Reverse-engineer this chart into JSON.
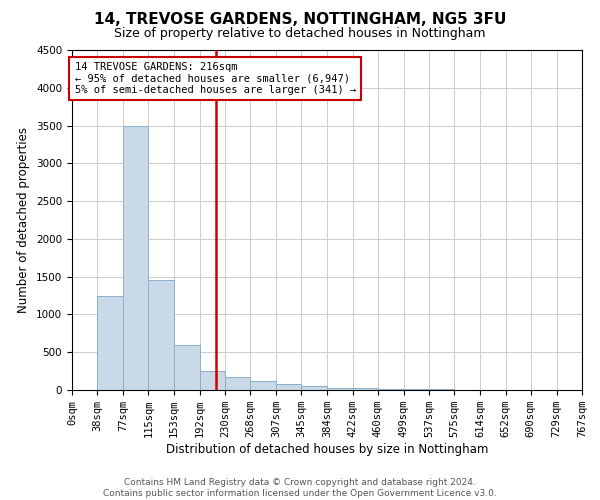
{
  "title": "14, TREVOSE GARDENS, NOTTINGHAM, NG5 3FU",
  "subtitle": "Size of property relative to detached houses in Nottingham",
  "xlabel": "Distribution of detached houses by size in Nottingham",
  "ylabel": "Number of detached properties",
  "bar_edges": [
    0,
    38,
    77,
    115,
    153,
    192,
    230,
    268,
    307,
    345,
    384,
    422,
    460,
    499,
    537,
    575,
    614,
    652,
    690,
    729,
    767
  ],
  "bar_heights": [
    0,
    1250,
    3500,
    1450,
    600,
    250,
    175,
    120,
    75,
    50,
    30,
    20,
    15,
    10,
    8,
    5,
    4,
    3,
    2,
    1
  ],
  "bar_color": "#c9d9e8",
  "bar_edgecolor": "#8ab0cc",
  "property_size": 216,
  "vline_color": "#cc0000",
  "annotation_line1": "14 TREVOSE GARDENS: 216sqm",
  "annotation_line2": "← 95% of detached houses are smaller (6,947)",
  "annotation_line3": "5% of semi-detached houses are larger (341) →",
  "annotation_box_color": "#cc0000",
  "ylim": [
    0,
    4500
  ],
  "yticks": [
    0,
    500,
    1000,
    1500,
    2000,
    2500,
    3000,
    3500,
    4000,
    4500
  ],
  "footer_line1": "Contains HM Land Registry data © Crown copyright and database right 2024.",
  "footer_line2": "Contains public sector information licensed under the Open Government Licence v3.0.",
  "bg_color": "#ffffff",
  "grid_color": "#cccccc",
  "title_fontsize": 11,
  "subtitle_fontsize": 9,
  "axis_label_fontsize": 8.5,
  "tick_fontsize": 7.5,
  "annotation_fontsize": 7.5,
  "footer_fontsize": 6.5
}
